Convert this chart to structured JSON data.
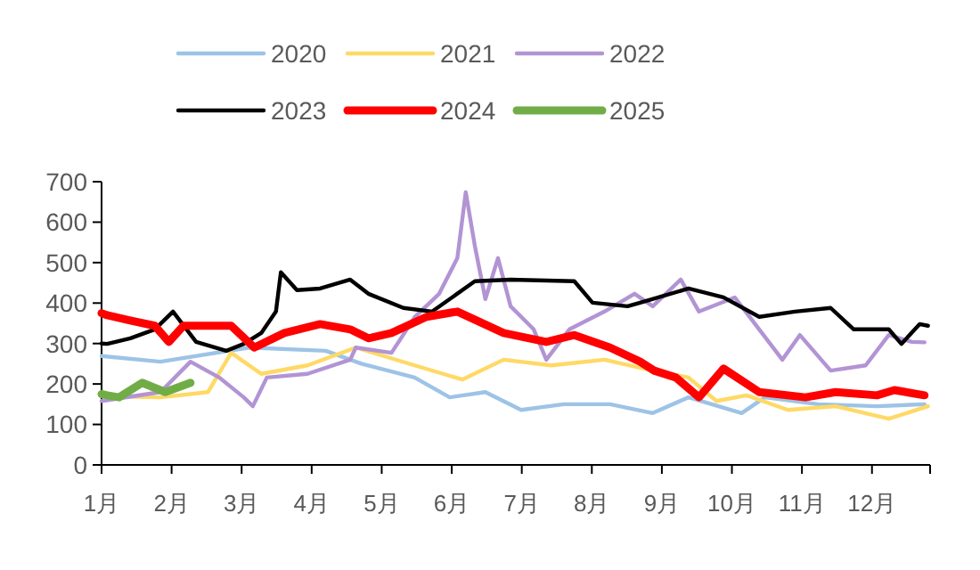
{
  "chart_data": {
    "type": "line",
    "xlim": [
      1,
      12.83
    ],
    "xticks": [
      {
        "value": 1,
        "label": "1月"
      },
      {
        "value": 2,
        "label": "2月"
      },
      {
        "value": 3,
        "label": "3月"
      },
      {
        "value": 4,
        "label": "4月"
      },
      {
        "value": 5,
        "label": "5月"
      },
      {
        "value": 6,
        "label": "6月"
      },
      {
        "value": 7,
        "label": "7月"
      },
      {
        "value": 8,
        "label": "8月"
      },
      {
        "value": 9,
        "label": "9月"
      },
      {
        "value": 10,
        "label": "10月"
      },
      {
        "value": 11,
        "label": "11月"
      },
      {
        "value": 12,
        "label": "12月"
      }
    ],
    "ylim": [
      0,
      700
    ],
    "yticks": [
      0,
      100,
      200,
      300,
      400,
      500,
      600,
      700
    ],
    "grid": false,
    "legend": "top",
    "marker": "none",
    "line_style": "solid",
    "series": [
      {
        "name": "2020",
        "color": "#9dc3e6",
        "x": [
          1,
          1.84,
          3.11,
          4.2,
          4.71,
          5.47,
          5.97,
          6.48,
          6.99,
          7.6,
          8.26,
          8.87,
          9.38,
          10.14,
          10.47,
          11.23,
          12.07,
          12.75
        ],
        "values": [
          269,
          255,
          290,
          282,
          250,
          216,
          167,
          180,
          136,
          150,
          150,
          128,
          167,
          128,
          167,
          150,
          145,
          150
        ]
      },
      {
        "name": "2021",
        "color": "#ffd966",
        "x": [
          1,
          1.84,
          2.52,
          2.85,
          3.28,
          3.94,
          4.63,
          5.47,
          6.15,
          6.74,
          7.42,
          8.18,
          8.87,
          9.38,
          9.78,
          10.21,
          10.8,
          11.48,
          12.24,
          12.8
        ],
        "values": [
          170,
          167,
          180,
          277,
          225,
          246,
          290,
          246,
          211,
          260,
          246,
          260,
          233,
          216,
          158,
          172,
          136,
          145,
          114,
          145
        ]
      },
      {
        "name": "2022",
        "color": "#b294d4",
        "x": [
          1,
          1.84,
          2.27,
          2.68,
          3.03,
          3.16,
          3.36,
          3.94,
          4.55,
          4.63,
          5.14,
          5.47,
          5.82,
          6.08,
          6.2,
          6.33,
          6.48,
          6.66,
          6.84,
          7.17,
          7.35,
          7.68,
          8.18,
          8.61,
          8.87,
          9.27,
          9.53,
          10.04,
          10.39,
          10.72,
          10.97,
          11.41,
          11.91,
          12.24,
          12.57,
          12.75
        ],
        "values": [
          158,
          180,
          255,
          216,
          167,
          145,
          216,
          225,
          260,
          290,
          277,
          365,
          423,
          511,
          674,
          541,
          410,
          511,
          392,
          335,
          260,
          335,
          379,
          423,
          392,
          458,
          379,
          414,
          335,
          260,
          321,
          233,
          246,
          321,
          304,
          303
        ]
      },
      {
        "name": "2023",
        "color": "#000000",
        "x": [
          1,
          1.08,
          1.41,
          1.76,
          2.02,
          2.35,
          2.78,
          3.03,
          3.28,
          3.49,
          3.56,
          3.79,
          4.12,
          4.55,
          4.81,
          5.31,
          5.72,
          6.33,
          6.84,
          7.75,
          8.01,
          8.51,
          8.69,
          9.38,
          9.88,
          10.39,
          10.9,
          11.41,
          11.74,
          12.24,
          12.42,
          12.68,
          12.8
        ],
        "values": [
          300,
          299,
          313,
          335,
          379,
          304,
          282,
          299,
          326,
          379,
          476,
          432,
          436,
          458,
          423,
          388,
          379,
          454,
          458,
          454,
          401,
          392,
          401,
          436,
          414,
          366,
          379,
          388,
          335,
          335,
          299,
          348,
          344
        ]
      },
      {
        "name": "2024",
        "color": "#ff0000",
        "x": [
          1,
          1.08,
          1.41,
          1.76,
          1.96,
          2.17,
          2.52,
          2.85,
          3.18,
          3.61,
          4.12,
          4.55,
          4.81,
          5.14,
          5.64,
          6.08,
          6.74,
          7.35,
          7.75,
          8.26,
          8.69,
          8.89,
          9.2,
          9.53,
          9.88,
          10.39,
          11.05,
          11.48,
          12.07,
          12.32,
          12.75
        ],
        "values": [
          375,
          370,
          357,
          344,
          304,
          344,
          344,
          344,
          290,
          326,
          348,
          335,
          313,
          326,
          366,
          379,
          326,
          304,
          321,
          290,
          255,
          233,
          216,
          167,
          238,
          180,
          167,
          180,
          172,
          185,
          172
        ]
      },
      {
        "name": "2025",
        "color": "#70ad47",
        "x": [
          1,
          1.08,
          1.25,
          1.58,
          1.91,
          2.27
        ],
        "values": [
          175,
          172,
          167,
          203,
          180,
          203
        ]
      }
    ]
  }
}
